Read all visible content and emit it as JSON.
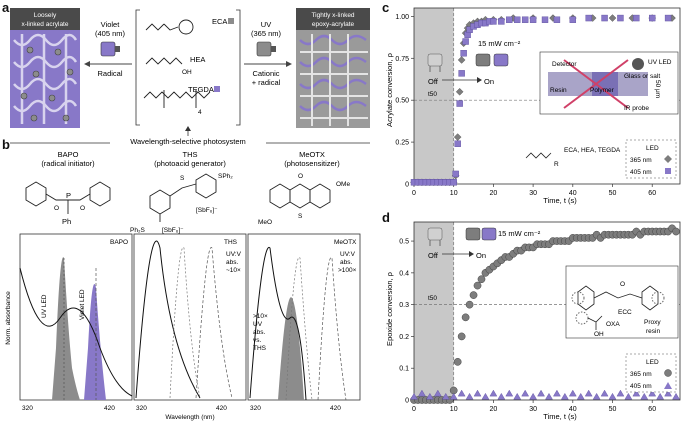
{
  "panel_labels": {
    "a": "a",
    "b": "b",
    "c": "c",
    "d": "d"
  },
  "panel_a": {
    "left_box_title": "Loosely x-linked acrylate",
    "right_box_title": "Tightly x-linked epoxy-acrylate",
    "violet_label_1": "Violet",
    "violet_label_2": "(405 nm)",
    "radical_label": "Radical",
    "uv_label_1": "UV",
    "uv_label_2": "(365 nm)",
    "cationic_label_1": "Cationic",
    "cationic_label_2": "+ radical",
    "monomers": [
      "ECA",
      "HEA",
      "TEGDA"
    ],
    "subscript_4": "4",
    "photosystem_label": "Wavelength-selective photosystem",
    "accent_violet": "#8878c8",
    "accent_gray": "#8c8c8c"
  },
  "panel_b": {
    "compounds": [
      {
        "name": "BAPO",
        "role": "(radical initiator)"
      },
      {
        "name": "THS",
        "role": "(photoacid generator)"
      },
      {
        "name": "MeOTX",
        "role": "(photosensitizer)"
      }
    ],
    "struct_labels": {
      "ph": "Ph",
      "p": "P",
      "s": "S",
      "sph2": "SPh₂",
      "ph2s": "Ph₂S",
      "sbf6": "[SbF₆]⁻",
      "ome": "OMe",
      "meo": "MeO",
      "o": "O"
    },
    "ylabel": "Norm. absorbance",
    "xlabel": "Wavelength (nm)",
    "xticks": [
      "320",
      "420",
      "320",
      "420",
      "320",
      "420"
    ],
    "uv_led": "UV LED",
    "violet_led": "Violet LED",
    "sub_titles": [
      "BAPO",
      "THS",
      "MeOTX"
    ],
    "ths_note": [
      "UV:V",
      "abs.",
      "~10×"
    ],
    "meotx_note": [
      "UV:V",
      "abs.",
      ">100×"
    ],
    "meotx_side_note": [
      ">10×",
      "UV",
      "abs.",
      "vs.",
      "THS"
    ]
  },
  "chart_data": [
    {
      "type": "scatter",
      "panel": "c",
      "xlabel": "Time, t (s)",
      "ylabel": "Acrylate conversion, ρ",
      "xlim": [
        0,
        67
      ],
      "ylim": [
        0,
        1.05
      ],
      "xticks": [
        0,
        10,
        20,
        30,
        40,
        50,
        60
      ],
      "yticks": [
        0,
        0.25,
        0.5,
        0.75,
        1.0
      ],
      "ytick_labels": [
        "0",
        "0.25",
        "0.50",
        "0.75",
        "1.00"
      ],
      "t50_label": "t50",
      "t50_y": 0.5,
      "dark_period": [
        0,
        10
      ],
      "intensity_label": "15 mW cm⁻²",
      "off_label": "Off",
      "on_label": "On",
      "inset_labels": [
        "Detector",
        "UV LED",
        "Glass or salt",
        "Resin",
        "Polymer",
        "IR probe",
        "50 μm"
      ],
      "monomer_label": "ECA, HEA, TEGDA",
      "r_label": "R",
      "legend_title": "LED",
      "series": [
        {
          "name": "365 nm",
          "marker": "diamond",
          "color": "#7d7d7d",
          "x": [
            0,
            1,
            2,
            3,
            4,
            5,
            6,
            7,
            8,
            9,
            10,
            10.5,
            11,
            11.5,
            12,
            12.5,
            13,
            13.5,
            14,
            15,
            16,
            17,
            18,
            20,
            22,
            25,
            30,
            35,
            40,
            45,
            50,
            55,
            60,
            65
          ],
          "y": [
            0.01,
            0.01,
            0.01,
            0.01,
            0.01,
            0.01,
            0.01,
            0.01,
            0.01,
            0.01,
            0.01,
            0.05,
            0.28,
            0.55,
            0.74,
            0.84,
            0.9,
            0.93,
            0.95,
            0.96,
            0.97,
            0.97,
            0.98,
            0.98,
            0.98,
            0.99,
            0.99,
            0.99,
            0.99,
            0.99,
            0.99,
            0.99,
            0.99,
            0.99
          ]
        },
        {
          "name": "405 nm",
          "marker": "square",
          "color": "#8878c8",
          "x": [
            0,
            1,
            2,
            3,
            4,
            5,
            6,
            7,
            8,
            9,
            10,
            10.5,
            11,
            11.5,
            12,
            12.5,
            13,
            13.5,
            14,
            15,
            16,
            17,
            18,
            19,
            20,
            22,
            24,
            26,
            28,
            30,
            33,
            36,
            40,
            44,
            48,
            52,
            56,
            60,
            64
          ],
          "y": [
            0.01,
            0.01,
            0.01,
            0.01,
            0.01,
            0.01,
            0.01,
            0.01,
            0.01,
            0.01,
            0.01,
            0.06,
            0.24,
            0.48,
            0.66,
            0.78,
            0.85,
            0.89,
            0.92,
            0.94,
            0.95,
            0.96,
            0.96,
            0.97,
            0.97,
            0.97,
            0.98,
            0.98,
            0.98,
            0.98,
            0.98,
            0.98,
            0.98,
            0.99,
            0.99,
            0.99,
            0.99,
            0.99,
            0.99
          ]
        }
      ]
    },
    {
      "type": "scatter",
      "panel": "d",
      "xlabel": "Time, t (s)",
      "ylabel": "Epoxide conversion, ρ",
      "xlim": [
        0,
        67
      ],
      "ylim": [
        0,
        0.56
      ],
      "xticks": [
        0,
        10,
        20,
        30,
        40,
        50,
        60
      ],
      "yticks": [
        0,
        0.1,
        0.2,
        0.3,
        0.4,
        0.5
      ],
      "ytick_labels": [
        "0",
        "0.1",
        "0.2",
        "0.3",
        "0.4",
        "0.5"
      ],
      "t50_label": "t50",
      "t50_y": 0.3,
      "dark_period": [
        0,
        10
      ],
      "intensity_label": "15 mW cm⁻²",
      "off_label": "Off",
      "on_label": "On",
      "inset_labels": [
        "ECC",
        "OXA",
        "Proxy",
        "resin",
        "O",
        "OH"
      ],
      "legend_title": "LED",
      "series": [
        {
          "name": "365 nm",
          "marker": "circle",
          "color": "#7d7d7d",
          "x": [
            0,
            1,
            2,
            3,
            4,
            5,
            6,
            7,
            8,
            9,
            10,
            11,
            12,
            13,
            14,
            15,
            16,
            17,
            18,
            19,
            20,
            21,
            22,
            23,
            24,
            25,
            26,
            27,
            28,
            29,
            30,
            31,
            32,
            33,
            34,
            35,
            36,
            37,
            38,
            39,
            40,
            41,
            42,
            43,
            44,
            45,
            46,
            47,
            48,
            49,
            50,
            51,
            52,
            53,
            54,
            55,
            56,
            57,
            58,
            59,
            60,
            61,
            62,
            63,
            64,
            65,
            66
          ],
          "y": [
            0,
            0,
            0,
            0,
            0,
            0,
            0,
            0,
            0,
            0,
            0.03,
            0.12,
            0.2,
            0.26,
            0.3,
            0.33,
            0.36,
            0.38,
            0.4,
            0.41,
            0.42,
            0.43,
            0.44,
            0.45,
            0.45,
            0.46,
            0.47,
            0.47,
            0.48,
            0.48,
            0.48,
            0.49,
            0.49,
            0.49,
            0.49,
            0.5,
            0.5,
            0.5,
            0.5,
            0.5,
            0.51,
            0.51,
            0.51,
            0.51,
            0.51,
            0.51,
            0.52,
            0.51,
            0.52,
            0.52,
            0.52,
            0.52,
            0.52,
            0.52,
            0.52,
            0.52,
            0.53,
            0.52,
            0.53,
            0.53,
            0.53,
            0.53,
            0.53,
            0.53,
            0.53,
            0.54,
            0.53
          ]
        },
        {
          "name": "405 nm",
          "marker": "triangle",
          "color": "#8878c8",
          "x": [
            0,
            2,
            4,
            6,
            8,
            10,
            12,
            14,
            16,
            18,
            20,
            22,
            24,
            26,
            28,
            30,
            32,
            34,
            36,
            38,
            40,
            42,
            44,
            46,
            48,
            50,
            52,
            54,
            56,
            58,
            60,
            62,
            64,
            66
          ],
          "y": [
            0.01,
            0.02,
            0.01,
            0.02,
            0.01,
            0.01,
            0.02,
            0.01,
            0.02,
            0.01,
            0.02,
            0.01,
            0.02,
            0.01,
            0.02,
            0.01,
            0.02,
            0.01,
            0.02,
            0.01,
            0.02,
            0.01,
            0.02,
            0.01,
            0.02,
            0.01,
            0.02,
            0.01,
            0.02,
            0.01,
            0.02,
            0.01,
            0.02,
            0.01
          ]
        }
      ]
    }
  ]
}
